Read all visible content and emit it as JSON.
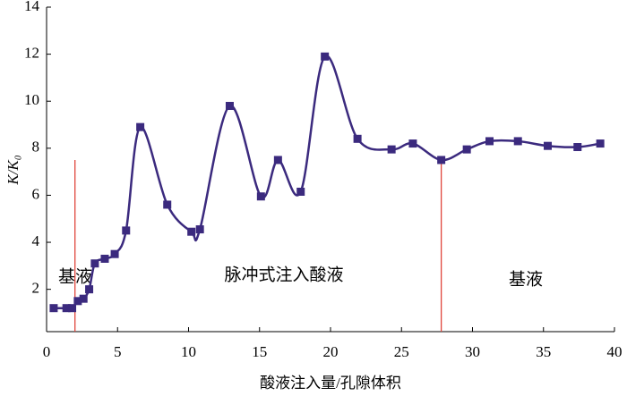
{
  "chart_data": {
    "type": "line",
    "x_label": "酸液注入量/孔隙体积",
    "y_label": "K/K₀",
    "series": [
      {
        "name": "K/K₀",
        "color": "#3b2a7e",
        "x": [
          0.5,
          1.4,
          1.8,
          2.2,
          2.6,
          3.0,
          3.4,
          4.1,
          4.8,
          5.6,
          6.6,
          8.5,
          10.2,
          10.8,
          12.9,
          15.1,
          16.3,
          17.9,
          19.6,
          21.9,
          24.3,
          25.8,
          27.8,
          29.6,
          31.2,
          33.2,
          35.3,
          37.4,
          39.0
        ],
        "values": [
          1.2,
          1.2,
          1.2,
          1.5,
          1.6,
          2.0,
          3.1,
          3.3,
          3.5,
          4.5,
          8.9,
          5.6,
          4.45,
          4.55,
          9.8,
          5.95,
          7.5,
          6.15,
          11.9,
          8.4,
          7.95,
          8.2,
          7.5,
          7.95,
          8.3,
          8.3,
          8.1,
          8.05,
          8.2
        ]
      }
    ],
    "xlim": [
      0,
      40
    ],
    "xticks": [
      0,
      5,
      10,
      15,
      20,
      25,
      30,
      35,
      40
    ],
    "ylim": [
      0.2,
      14
    ],
    "yticks": [
      2,
      4,
      6,
      8,
      10,
      12,
      14
    ],
    "stage_lines": {
      "color": "#e0453c",
      "x": [
        2.0,
        27.8
      ]
    },
    "annotations": [
      "基液",
      "脉冲式注入酸液",
      "基液"
    ]
  }
}
